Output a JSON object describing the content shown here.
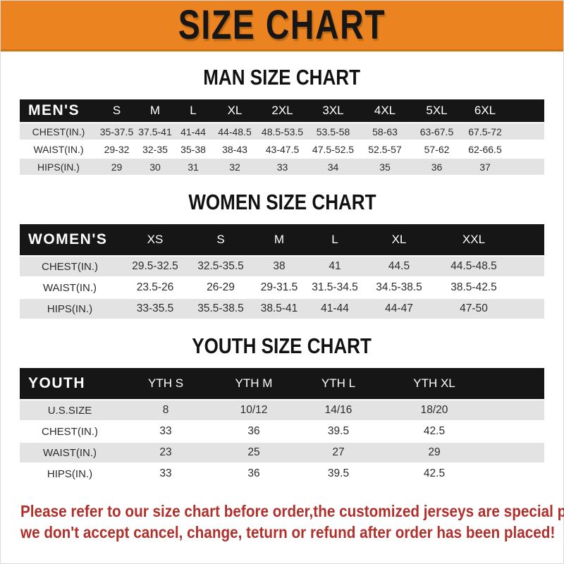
{
  "banner": {
    "title": "SIZE CHART",
    "bg_color": "#EB8420",
    "text_color": "#161616"
  },
  "sections": [
    {
      "heading": "MAN SIZE CHART",
      "table": {
        "corner_label": "MEN'S",
        "columns": [
          "S",
          "M",
          "L",
          "XL",
          "2XL",
          "3XL",
          "4XL",
          "5XL",
          "6XL"
        ],
        "rows": [
          {
            "label": "CHEST(IN.)",
            "values": [
              "35-37.5",
              "37.5-41",
              "41-44",
              "44-48.5",
              "48.5-53.5",
              "53.5-58",
              "58-63",
              "63-67.5",
              "67.5-72"
            ]
          },
          {
            "label": "WAIST(IN.)",
            "values": [
              "29-32",
              "32-35",
              "35-38",
              "38-43",
              "43-47.5",
              "47.5-52.5",
              "52.5-57",
              "57-62",
              "62-66.5"
            ]
          },
          {
            "label": "HIPS(IN.)",
            "values": [
              "29",
              "30",
              "31",
              "32",
              "33",
              "34",
              "35",
              "36",
              "37"
            ]
          }
        ]
      }
    },
    {
      "heading": "WOMEN SIZE CHART",
      "table": {
        "corner_label": "WOMEN'S",
        "columns": [
          "XS",
          "S",
          "M",
          "L",
          "XL",
          "XXL"
        ],
        "rows": [
          {
            "label": "CHEST(IN.)",
            "values": [
              "29.5-32.5",
              "32.5-35.5",
              "38",
              "41",
              "44.5",
              "44.5-48.5"
            ]
          },
          {
            "label": "WAIST(IN.)",
            "values": [
              "23.5-26",
              "26-29",
              "29-31.5",
              "31.5-34.5",
              "34.5-38.5",
              "38.5-42.5"
            ]
          },
          {
            "label": "HIPS(IN.)",
            "values": [
              "33-35.5",
              "35.5-38.5",
              "38.5-41",
              "41-44",
              "44-47",
              "47-50"
            ]
          }
        ]
      }
    },
    {
      "heading": "YOUTH SIZE CHART",
      "table": {
        "corner_label": "YOUTH",
        "columns": [
          "YTH S",
          "YTH M",
          "YTH L",
          "YTH XL"
        ],
        "rows": [
          {
            "label": "U.S.SIZE",
            "values": [
              "8",
              "10/12",
              "14/16",
              "18/20"
            ]
          },
          {
            "label": "CHEST(IN.)",
            "values": [
              "33",
              "36",
              "39.5",
              "42.5"
            ]
          },
          {
            "label": "WAIST(IN.)",
            "values": [
              "23",
              "25",
              "27",
              "29"
            ]
          },
          {
            "label": "HIPS(IN.)",
            "values": [
              "33",
              "36",
              "39.5",
              "42.5"
            ]
          }
        ]
      }
    }
  ],
  "footer": {
    "lines": [
      "Please refer to our size chart before order,the customized jerseys are special products,",
      "we don't accept cancel, change, teturn or refund after order has been placed!"
    ],
    "text_color": "#B0302C"
  },
  "colors": {
    "banner_orange": "#EB8420",
    "header_black": "#161616",
    "stripe_gray": "#E3E3E3",
    "note_red": "#B0302C"
  }
}
